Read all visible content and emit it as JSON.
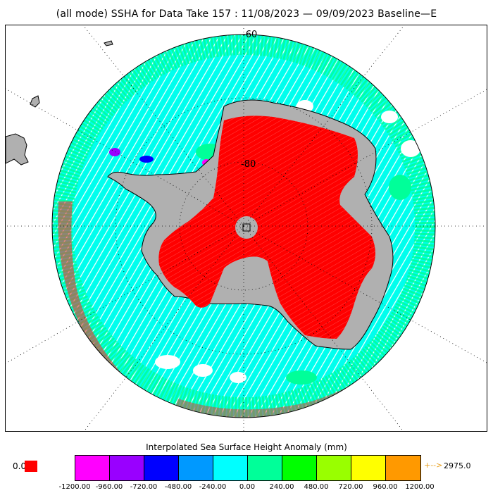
{
  "title": "(all mode) SSHA for Data Take 157 : 11/08/2023 — 09/09/2023 Baseline—E",
  "map": {
    "projection": "south-polar-stereographic",
    "lat_labels": [
      "-60",
      "-80"
    ],
    "colors": {
      "land": "#b0b0b0",
      "ice_sheet_anomaly": "#ff0000",
      "ocean_dominant": "#00ffee",
      "ocean_secondary": "#00ff99",
      "coastline": "#000000",
      "graticule": "#000000"
    }
  },
  "legend": {
    "title": "Interpolated Sea Surface Height Anomaly (mm)",
    "colors": [
      "#ff00ff",
      "#9900ff",
      "#0000ff",
      "#0099ff",
      "#00ffff",
      "#00ff99",
      "#00ff00",
      "#99ff00",
      "#ffff00",
      "#ff9900"
    ],
    "ticks": [
      "-1200.00",
      "-960.00",
      "-720.00",
      "-480.00",
      "-240.00",
      "0.00",
      "240.00",
      "480.00",
      "720.00",
      "960.00",
      "1200.00"
    ],
    "below_value": "0.0",
    "below_color": "#ff0000",
    "above_arrow": "+-->",
    "above_value": "2975.0",
    "above_color": "#e8a020"
  }
}
